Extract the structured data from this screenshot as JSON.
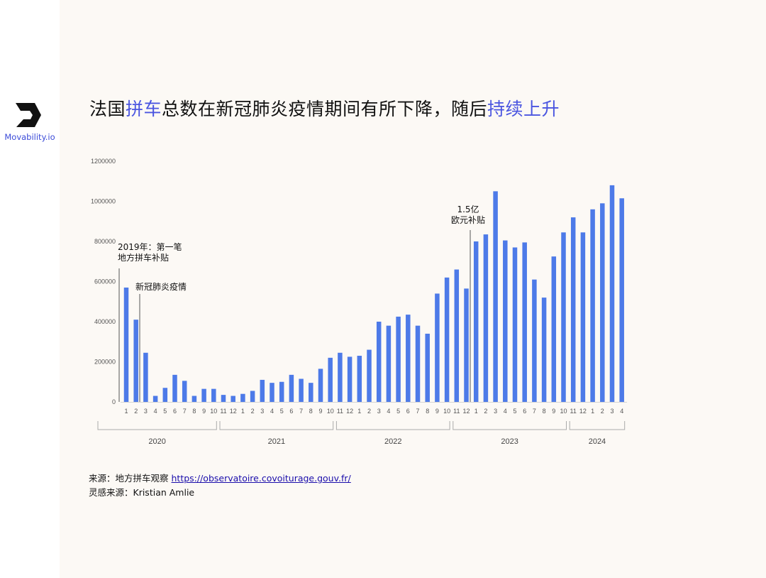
{
  "brand": {
    "name": "Movability.io",
    "logo_icon": "movability-logo-icon",
    "accent_color": "#3b4bd8"
  },
  "title": {
    "part1": "法国",
    "highlight1": "拼车",
    "part2": "总数在新冠肺炎疫情期间有所下降，随后",
    "highlight2": "持续上升",
    "highlight_color": "#4a55e0"
  },
  "chart_data": {
    "type": "bar",
    "bar_color": "#4d7ae8",
    "title": "",
    "xlabel": "",
    "ylabel": "",
    "ylim": [
      0,
      1200000
    ],
    "yticks": [
      0,
      200000,
      400000,
      600000,
      800000,
      1000000,
      1200000
    ],
    "grid": false,
    "categories": [
      "1",
      "2",
      "3",
      "4",
      "5",
      "6",
      "7",
      "8",
      "9",
      "10",
      "11",
      "12",
      "1",
      "2",
      "3",
      "4",
      "5",
      "6",
      "7",
      "8",
      "9",
      "10",
      "11",
      "12",
      "1",
      "2",
      "3",
      "4",
      "5",
      "6",
      "7",
      "8",
      "9",
      "10",
      "11",
      "12",
      "1",
      "2",
      "3",
      "4",
      "5",
      "6",
      "7",
      "8",
      "9",
      "10",
      "11",
      "12",
      "1",
      "2",
      "3",
      "4"
    ],
    "values": [
      570000,
      410000,
      245000,
      30000,
      70000,
      135000,
      105000,
      30000,
      65000,
      65000,
      35000,
      30000,
      40000,
      55000,
      110000,
      95000,
      100000,
      135000,
      115000,
      95000,
      165000,
      220000,
      245000,
      225000,
      230000,
      260000,
      400000,
      380000,
      425000,
      435000,
      380000,
      340000,
      540000,
      620000,
      660000,
      565000,
      800000,
      835000,
      1050000,
      805000,
      770000,
      795000,
      610000,
      520000,
      725000,
      845000,
      920000,
      845000,
      960000,
      990000,
      1080000,
      1015000
    ],
    "year_groups": [
      {
        "label": "2020",
        "start": 0,
        "end": 9
      },
      {
        "label": "2021",
        "start": 10,
        "end": 21
      },
      {
        "label": "2022",
        "start": 22,
        "end": 33
      },
      {
        "label": "2023",
        "start": 34,
        "end": 45
      },
      {
        "label": "2024",
        "start": 46,
        "end": 51
      }
    ],
    "annotations": [
      {
        "lines": [
          "2019年：第一笔",
          "地方拼车补贴"
        ],
        "index": 0
      },
      {
        "lines": [
          "新冠肺炎疫情"
        ],
        "index": 2
      },
      {
        "lines": [
          "1.5亿",
          "欧元补贴"
        ],
        "index": 36
      }
    ]
  },
  "source": {
    "label": "来源：地方拼车观察",
    "link_text": "https://observatoire.covoiturage.gouv.fr/",
    "inspiration": "灵感来源：Kristian Amlie"
  }
}
